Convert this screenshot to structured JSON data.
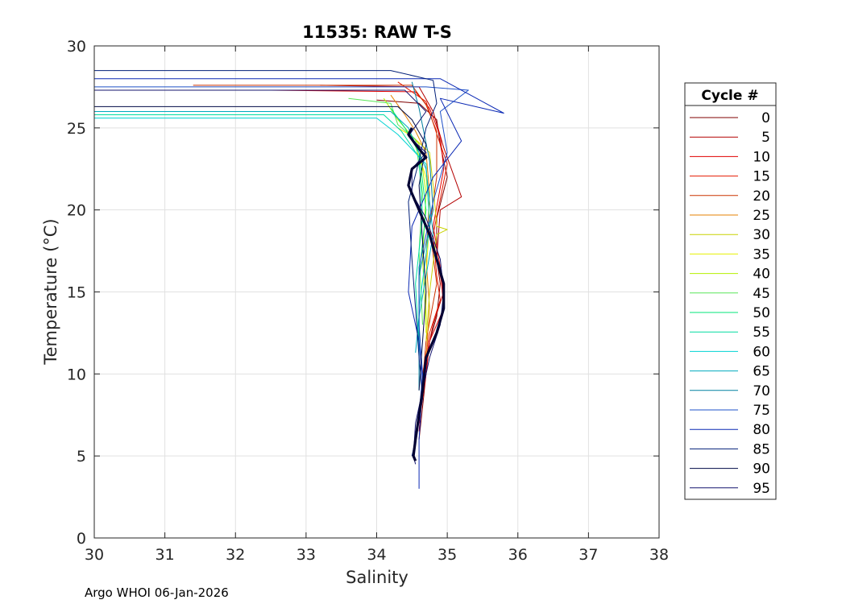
{
  "chart_data": {
    "type": "line",
    "title": "11535: RAW T-S",
    "xlabel": "Salinity",
    "ylabel": "Temperature (°C)",
    "xlim": [
      30,
      38
    ],
    "ylim": [
      0,
      30
    ],
    "xticks": [
      30,
      31,
      32,
      33,
      34,
      35,
      36,
      37,
      38
    ],
    "yticks": [
      0,
      5,
      10,
      15,
      20,
      25,
      30
    ],
    "grid": true,
    "legend": {
      "title": "Cycle #",
      "placement": "outside-right",
      "entries": [
        {
          "label": "0",
          "color": "#7f0000"
        },
        {
          "label": "5",
          "color": "#b40000"
        },
        {
          "label": "10",
          "color": "#e00000"
        },
        {
          "label": "15",
          "color": "#e61a00"
        },
        {
          "label": "20",
          "color": "#cc3300"
        },
        {
          "label": "25",
          "color": "#e68000"
        },
        {
          "label": "30",
          "color": "#c8d200"
        },
        {
          "label": "35",
          "color": "#e6f000"
        },
        {
          "label": "40",
          "color": "#b4f000"
        },
        {
          "label": "45",
          "color": "#5ae65a"
        },
        {
          "label": "50",
          "color": "#00e678"
        },
        {
          "label": "55",
          "color": "#00dca0"
        },
        {
          "label": "60",
          "color": "#00d2d2"
        },
        {
          "label": "65",
          "color": "#00aabe"
        },
        {
          "label": "70",
          "color": "#0080a0"
        },
        {
          "label": "75",
          "color": "#1e50c8"
        },
        {
          "label": "80",
          "color": "#0a28b4"
        },
        {
          "label": "85",
          "color": "#001e78"
        },
        {
          "label": "90",
          "color": "#000a46"
        },
        {
          "label": "95",
          "color": "#14146e"
        }
      ]
    },
    "series": [
      {
        "name": "0",
        "color": "#7f0000",
        "points": [
          [
            34.0,
            26.7
          ],
          [
            34.6,
            26.5
          ],
          [
            34.85,
            25.5
          ],
          [
            34.9,
            24.0
          ],
          [
            34.95,
            23.0
          ],
          [
            35.0,
            22.0
          ],
          [
            34.85,
            19.5
          ],
          [
            34.85,
            17.0
          ],
          [
            34.9,
            15.5
          ],
          [
            34.85,
            13.5
          ],
          [
            34.75,
            12.0
          ],
          [
            34.7,
            10.0
          ],
          [
            34.65,
            8.0
          ],
          [
            34.6,
            6.0
          ]
        ]
      },
      {
        "name": "5",
        "color": "#b40000",
        "points": [
          [
            33.2,
            27.6
          ],
          [
            34.6,
            27.5
          ],
          [
            34.8,
            26.0
          ],
          [
            34.95,
            23.8
          ],
          [
            35.2,
            20.8
          ],
          [
            34.9,
            20.0
          ],
          [
            34.85,
            17.0
          ],
          [
            34.95,
            15.0
          ],
          [
            34.8,
            13.0
          ],
          [
            34.7,
            11.0
          ],
          [
            34.65,
            9.0
          ],
          [
            34.6,
            6.5
          ]
        ]
      },
      {
        "name": "10",
        "color": "#e00000",
        "points": [
          [
            32.5,
            27.3
          ],
          [
            34.55,
            27.2
          ],
          [
            34.75,
            26.2
          ],
          [
            34.9,
            24.5
          ],
          [
            34.95,
            22.5
          ],
          [
            34.8,
            19.0
          ],
          [
            34.9,
            16.5
          ],
          [
            34.95,
            14.0
          ],
          [
            34.75,
            12.0
          ],
          [
            34.7,
            10.0
          ],
          [
            34.6,
            7.0
          ]
        ]
      },
      {
        "name": "15",
        "color": "#e61a00",
        "points": [
          [
            34.3,
            27.8
          ],
          [
            34.7,
            26.6
          ],
          [
            34.9,
            24.0
          ],
          [
            35.0,
            22.8
          ],
          [
            34.8,
            18.5
          ],
          [
            34.85,
            16.0
          ],
          [
            34.9,
            14.5
          ],
          [
            34.75,
            12.5
          ],
          [
            34.65,
            10.0
          ]
        ]
      },
      {
        "name": "20",
        "color": "#cc3300",
        "points": [
          [
            31.4,
            27.6
          ],
          [
            34.5,
            27.6
          ],
          [
            34.7,
            26.4
          ],
          [
            34.85,
            24.8
          ],
          [
            34.85,
            22.0
          ],
          [
            34.75,
            19.0
          ],
          [
            34.85,
            15.5
          ],
          [
            34.7,
            12.0
          ],
          [
            34.65,
            9.5
          ]
        ]
      },
      {
        "name": "25",
        "color": "#e68000",
        "points": [
          [
            34.2,
            27.0
          ],
          [
            34.4,
            25.8
          ],
          [
            34.55,
            24.8
          ],
          [
            34.7,
            23.5
          ],
          [
            34.75,
            21.0
          ],
          [
            34.7,
            17.0
          ],
          [
            34.75,
            14.0
          ],
          [
            34.7,
            11.0
          ]
        ]
      },
      {
        "name": "30",
        "color": "#c8d200",
        "points": [
          [
            34.5,
            24.5
          ],
          [
            34.75,
            23.5
          ],
          [
            34.8,
            21.5
          ],
          [
            34.85,
            19.0
          ],
          [
            35.0,
            18.8
          ],
          [
            34.85,
            18.5
          ],
          [
            34.75,
            15.0
          ],
          [
            34.7,
            12.0
          ]
        ]
      },
      {
        "name": "35",
        "color": "#e6f000",
        "points": [
          [
            34.3,
            25.0
          ],
          [
            34.5,
            24.5
          ],
          [
            34.7,
            22.0
          ],
          [
            34.75,
            19.5
          ],
          [
            34.7,
            16.0
          ],
          [
            34.7,
            12.5
          ]
        ]
      },
      {
        "name": "40",
        "color": "#b4f000",
        "points": [
          [
            34.1,
            26.8
          ],
          [
            34.3,
            25.5
          ],
          [
            34.6,
            24.0
          ],
          [
            34.7,
            21.0
          ],
          [
            34.65,
            17.0
          ],
          [
            34.7,
            13.0
          ]
        ]
      },
      {
        "name": "45",
        "color": "#5ae65a",
        "points": [
          [
            33.6,
            26.8
          ],
          [
            34.2,
            26.5
          ],
          [
            34.3,
            25.2
          ],
          [
            34.55,
            24.3
          ],
          [
            34.65,
            21.0
          ],
          [
            34.6,
            17.5
          ],
          [
            34.65,
            13.0
          ]
        ]
      },
      {
        "name": "50",
        "color": "#00e678",
        "points": [
          [
            34.2,
            26.2
          ],
          [
            34.4,
            25.0
          ],
          [
            34.6,
            23.5
          ],
          [
            34.7,
            20.0
          ],
          [
            34.6,
            16.0
          ],
          [
            34.6,
            12.0
          ]
        ]
      },
      {
        "name": "55",
        "color": "#00dca0",
        "points": [
          [
            30.0,
            25.8
          ],
          [
            34.1,
            25.8
          ],
          [
            34.35,
            24.8
          ],
          [
            34.6,
            23.2
          ],
          [
            34.65,
            19.5
          ],
          [
            34.55,
            15.5
          ],
          [
            34.6,
            11.5
          ]
        ]
      },
      {
        "name": "60",
        "color": "#00d2d2",
        "points": [
          [
            30.0,
            25.6
          ],
          [
            34.0,
            25.6
          ],
          [
            34.3,
            24.6
          ],
          [
            34.7,
            22.8
          ],
          [
            34.75,
            19.0
          ],
          [
            34.6,
            14.0
          ],
          [
            34.6,
            11.0
          ]
        ]
      },
      {
        "name": "65",
        "color": "#00aabe",
        "points": [
          [
            30.0,
            26.0
          ],
          [
            34.2,
            26.0
          ],
          [
            34.45,
            25.0
          ],
          [
            34.7,
            22.5
          ],
          [
            34.8,
            18.5
          ],
          [
            34.6,
            13.5
          ],
          [
            34.55,
            11.3
          ]
        ]
      },
      {
        "name": "70",
        "color": "#0080a0",
        "points": [
          [
            34.5,
            27.8
          ],
          [
            34.6,
            26.2
          ],
          [
            34.75,
            23.0
          ],
          [
            34.8,
            20.0
          ],
          [
            34.6,
            16.0
          ],
          [
            34.6,
            12.0
          ],
          [
            34.6,
            9.0
          ]
        ]
      },
      {
        "name": "75",
        "color": "#1e50c8",
        "points": [
          [
            30.0,
            27.5
          ],
          [
            34.7,
            27.5
          ],
          [
            35.3,
            27.3
          ],
          [
            34.9,
            26.0
          ],
          [
            35.0,
            23.5
          ],
          [
            34.8,
            20.5
          ],
          [
            34.6,
            16.5
          ],
          [
            34.6,
            13.0
          ],
          [
            34.65,
            10.0
          ],
          [
            34.6,
            7.5
          ]
        ]
      },
      {
        "name": "80",
        "color": "#0a28b4",
        "points": [
          [
            30.0,
            28.0
          ],
          [
            34.9,
            28.0
          ],
          [
            35.8,
            25.9
          ],
          [
            34.9,
            26.8
          ],
          [
            35.2,
            24.2
          ],
          [
            34.8,
            22.0
          ],
          [
            34.5,
            19.0
          ],
          [
            34.45,
            15.0
          ],
          [
            34.6,
            12.0
          ],
          [
            34.65,
            9.5
          ],
          [
            34.6,
            6.0
          ],
          [
            34.6,
            3.0
          ]
        ]
      },
      {
        "name": "85",
        "color": "#001e78",
        "points": [
          [
            30.0,
            28.5
          ],
          [
            34.2,
            28.5
          ],
          [
            34.8,
            27.9
          ],
          [
            34.85,
            26.5
          ],
          [
            34.7,
            25.0
          ],
          [
            34.6,
            23.0
          ],
          [
            34.45,
            20.5
          ],
          [
            34.5,
            17.0
          ],
          [
            34.55,
            14.0
          ],
          [
            34.6,
            11.0
          ],
          [
            34.65,
            8.5
          ],
          [
            34.55,
            6.0
          ],
          [
            34.5,
            5.0
          ]
        ]
      },
      {
        "name": "90",
        "color": "#000a46",
        "points": [
          [
            30.0,
            26.3
          ],
          [
            34.3,
            26.3
          ],
          [
            34.5,
            25.5
          ],
          [
            34.7,
            24.0
          ],
          [
            34.6,
            21.5
          ],
          [
            34.65,
            18.0
          ],
          [
            34.7,
            15.0
          ],
          [
            34.65,
            12.0
          ],
          [
            34.6,
            9.0
          ]
        ]
      },
      {
        "name": "95",
        "color": "#14146e",
        "points": [
          [
            30.0,
            27.3
          ],
          [
            34.4,
            27.3
          ],
          [
            34.7,
            26.0
          ],
          [
            34.45,
            24.5
          ],
          [
            34.7,
            23.5
          ],
          [
            34.5,
            22.5
          ],
          [
            34.5,
            21.0
          ],
          [
            34.7,
            19.5
          ],
          [
            34.9,
            17.0
          ],
          [
            34.95,
            15.0
          ],
          [
            34.9,
            13.0
          ],
          [
            34.75,
            11.0
          ],
          [
            34.65,
            9.0
          ],
          [
            34.55,
            7.0
          ],
          [
            34.52,
            5.0
          ],
          [
            34.55,
            4.5
          ]
        ]
      },
      {
        "name": "95-thick",
        "color": "#000033",
        "thick": true,
        "points": [
          [
            34.5,
            25.0
          ],
          [
            34.45,
            24.6
          ],
          [
            34.55,
            24.0
          ],
          [
            34.7,
            23.2
          ],
          [
            34.5,
            22.5
          ],
          [
            34.45,
            21.5
          ],
          [
            34.6,
            20.0
          ],
          [
            34.75,
            18.5
          ],
          [
            34.85,
            17.0
          ],
          [
            34.95,
            15.5
          ],
          [
            34.95,
            14.0
          ],
          [
            34.85,
            12.5
          ],
          [
            34.7,
            11.0
          ],
          [
            34.65,
            9.0
          ],
          [
            34.6,
            7.5
          ],
          [
            34.55,
            6.0
          ],
          [
            34.52,
            5.0
          ],
          [
            34.55,
            4.7
          ]
        ]
      }
    ]
  },
  "footer": "Argo WHOI 06-Jan-2026"
}
